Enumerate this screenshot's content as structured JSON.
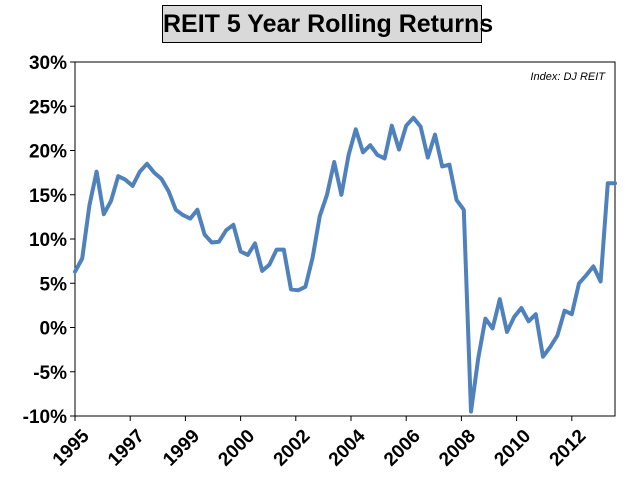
{
  "chart_data": {
    "type": "line",
    "title": "REIT 5 Year Rolling Returns",
    "annotation": "Index: DJ REIT",
    "xlabel": "",
    "ylabel": "",
    "ylim": [
      -10,
      30
    ],
    "xlim": [
      1995,
      2013.75
    ],
    "grid": false,
    "legend": "none",
    "y_ticks": [
      "30%",
      "25%",
      "20%",
      "15%",
      "10%",
      "5%",
      "0%",
      "-5%",
      "-10%"
    ],
    "y_tick_values": [
      30,
      25,
      20,
      15,
      10,
      5,
      0,
      -5,
      -10
    ],
    "x_ticks": [
      "1995",
      "1997",
      "1999",
      "2000",
      "2002",
      "2004",
      "2006",
      "2008",
      "2010",
      "2012"
    ],
    "line_color": "#4f81bd",
    "series": [
      {
        "x": [
          1995.0,
          1995.25,
          1995.5,
          1995.75,
          1996.0,
          1996.25,
          1996.5,
          1996.75,
          1997.0,
          1997.25,
          1997.5,
          1997.75,
          1998.0,
          1998.25,
          1998.5,
          1998.75,
          1999.0,
          1999.25,
          1999.5,
          1999.75,
          2000.0,
          2000.25,
          2000.5,
          2000.75,
          2001.0,
          2001.25,
          2001.5,
          2001.75,
          2002.0,
          2002.25,
          2002.5,
          2002.75,
          2003.0,
          2003.25,
          2003.5,
          2003.75,
          2004.0,
          2004.25,
          2004.5,
          2004.75,
          2005.0,
          2005.25,
          2005.5,
          2005.75,
          2006.0,
          2006.25,
          2006.5,
          2006.75,
          2007.0,
          2007.25,
          2007.5,
          2007.75,
          2008.0,
          2008.25,
          2008.5,
          2008.75,
          2009.0,
          2009.25,
          2009.5,
          2009.75,
          2010.0,
          2010.25,
          2010.5,
          2010.75,
          2011.0,
          2011.25,
          2011.5,
          2011.75,
          2012.0,
          2012.25,
          2012.5,
          2012.75,
          2013.0,
          2013.25,
          2013.5,
          2013.75
        ],
        "values": [
          6.3,
          7.8,
          13.8,
          17.6,
          12.8,
          14.3,
          17.1,
          16.7,
          16.0,
          17.6,
          18.5,
          17.5,
          16.8,
          15.4,
          13.3,
          12.7,
          12.3,
          13.3,
          10.5,
          9.6,
          9.7,
          11.0,
          11.6,
          8.6,
          8.2,
          9.5,
          6.4,
          7.1,
          8.8,
          8.8,
          4.3,
          4.2,
          4.6,
          7.9,
          12.6,
          15.0,
          18.7,
          15.0,
          19.5,
          22.4,
          19.8,
          20.6,
          19.5,
          19.1,
          22.8,
          20.1,
          22.8,
          23.7,
          22.7,
          19.2,
          21.8,
          18.2,
          18.4,
          14.4,
          13.3,
          -9.5,
          -3.5,
          1.0,
          -0.1,
          3.2,
          -0.5,
          1.2,
          2.2,
          0.7,
          1.5,
          -3.3,
          -2.2,
          -0.9,
          1.9,
          1.5,
          5.0,
          5.9,
          6.9,
          5.2,
          16.3,
          16.3
        ]
      }
    ]
  }
}
